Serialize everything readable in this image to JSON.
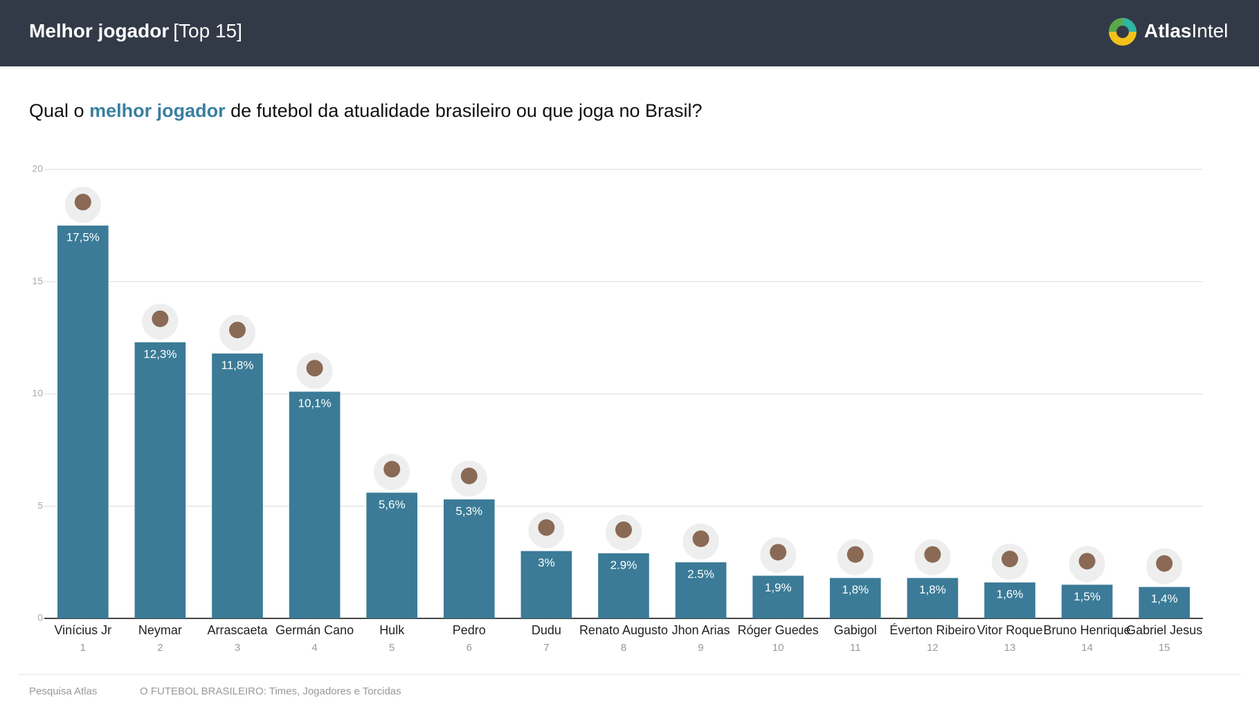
{
  "header": {
    "title_bold": "Melhor jogador",
    "title_rest": "[Top 15]",
    "logo_bold": "Atlas",
    "logo_rest": "Intel"
  },
  "chart_data": {
    "type": "bar",
    "title_parts": [
      "Qual o ",
      "melhor jogador",
      " de futebol da atualidade brasileiro ou que joga no Brasil?"
    ],
    "categories": [
      "Vinícius Jr",
      "Neymar",
      "Arrascaeta",
      "Germán Cano",
      "Hulk",
      "Pedro",
      "Dudu",
      "Renato Augusto",
      "Jhon Arias",
      "Róger Guedes",
      "Gabigol",
      "Éverton Ribeiro",
      "Vitor Roque",
      "Bruno Henrique",
      "Gabriel Jesus"
    ],
    "ranks": [
      1,
      2,
      3,
      4,
      5,
      6,
      7,
      8,
      9,
      10,
      11,
      12,
      13,
      14,
      15
    ],
    "values": [
      17.5,
      12.3,
      11.8,
      10.1,
      5.6,
      5.3,
      3,
      2.9,
      2.5,
      1.9,
      1.8,
      1.8,
      1.6,
      1.5,
      1.4
    ],
    "value_labels": [
      "17,5%",
      "12,3%",
      "11,8%",
      "10,1%",
      "5,6%",
      "5,3%",
      "3%",
      "2.9%",
      "2.5%",
      "1,9%",
      "1,8%",
      "1,8%",
      "1,6%",
      "1,5%",
      "1,4%"
    ],
    "color": "#3b7b97",
    "ylim": [
      0,
      20
    ],
    "yticks": [
      0,
      5,
      10,
      15,
      20
    ],
    "grid": true
  },
  "footer": {
    "source": "Pesquisa Atlas",
    "study": "O FUTEBOL BRASILEIRO: Times, Jogadores e Torcidas"
  }
}
